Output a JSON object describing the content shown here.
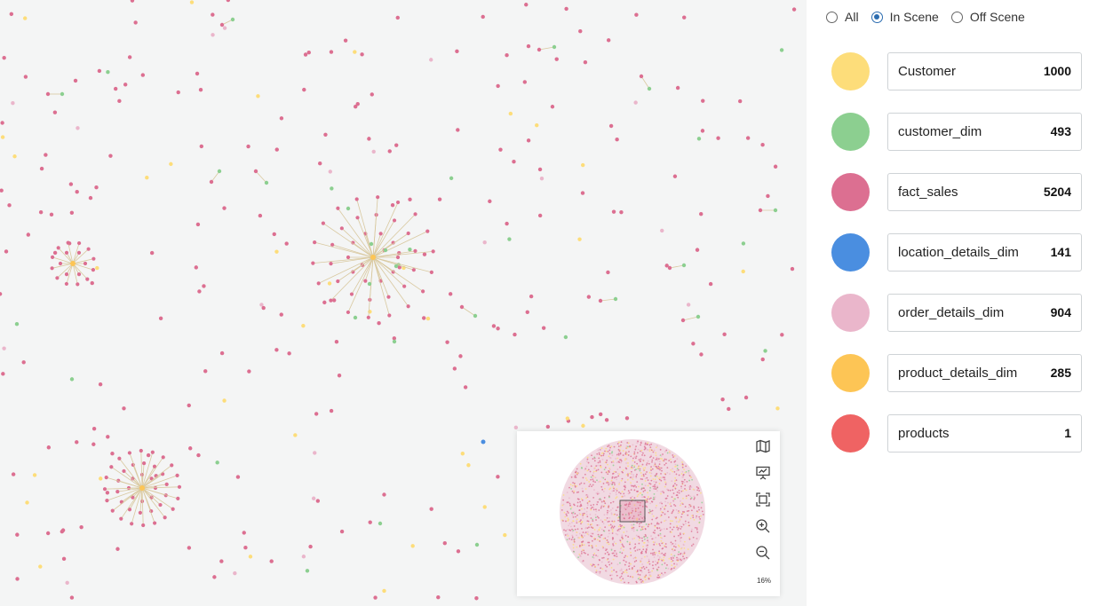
{
  "filter": {
    "options": [
      {
        "label": "All",
        "selected": false
      },
      {
        "label": "In Scene",
        "selected": true
      },
      {
        "label": "Off Scene",
        "selected": false
      }
    ]
  },
  "legend": [
    {
      "label": "Customer",
      "count": "1000",
      "color": "#fddd7a"
    },
    {
      "label": "customer_dim",
      "count": "493",
      "color": "#8ccf90"
    },
    {
      "label": "fact_sales",
      "count": "5204",
      "color": "#dc6f91"
    },
    {
      "label": "location_details_dim",
      "count": "141",
      "color": "#4a8ee0"
    },
    {
      "label": "order_details_dim",
      "count": "904",
      "color": "#eab6cb"
    },
    {
      "label": "product_details_dim",
      "count": "285",
      "color": "#fdc555"
    },
    {
      "label": "products",
      "count": "1",
      "color": "#ef6363"
    }
  ],
  "minimap": {
    "zoom_label": "16%",
    "tools": [
      "map-icon",
      "presentation-icon",
      "fit-screen-icon",
      "zoom-in-icon",
      "zoom-out-icon"
    ]
  },
  "colors": {
    "canvas_bg": "#f4f5f5",
    "edge": "#d9c9a0",
    "accent": "#2b6cb0"
  }
}
